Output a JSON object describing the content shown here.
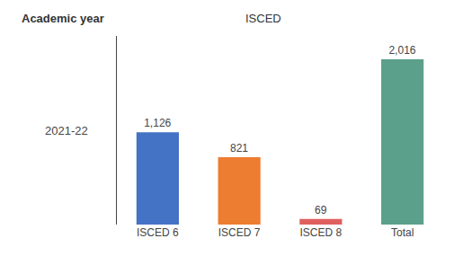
{
  "chart_data": {
    "type": "bar",
    "categories": [
      "ISCED 6",
      "ISCED 7",
      "ISCED 8",
      "Total"
    ],
    "values": [
      1126,
      821,
      69,
      2016
    ],
    "value_labels": [
      "1,126",
      "821",
      "69",
      "2,016"
    ],
    "colors": [
      "#4472C4",
      "#ED7D31",
      "#E06060",
      "#5BA08A"
    ],
    "data_labels": true,
    "ylim": [
      0,
      2300
    ],
    "yticks": [],
    "grid": false,
    "tick_labels": "x",
    "annotations": [
      "Academic year",
      "ISCED",
      "2021-22"
    ]
  }
}
